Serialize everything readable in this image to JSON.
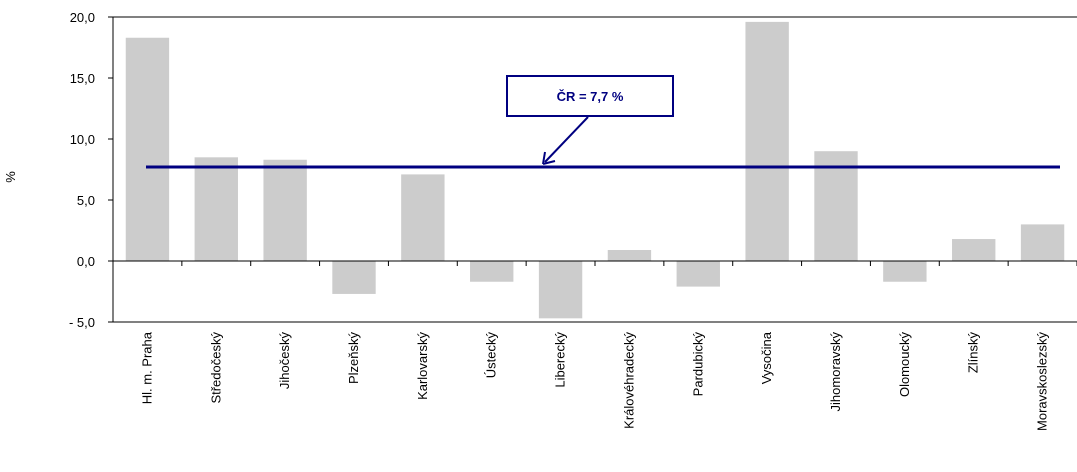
{
  "chart_data": {
    "type": "bar",
    "categories": [
      "Hl. m. Praha",
      "Středočeský",
      "Jihočeský",
      "Plzeňský",
      "Karlovarský",
      "Ústecký",
      "Liberecký",
      "Královéhradecký",
      "Pardubický",
      "Vysočina",
      "Jihomoravský",
      "Olomoucký",
      "Zlínský",
      "Moravskoslezský"
    ],
    "values": [
      18.3,
      8.5,
      8.3,
      -2.7,
      7.1,
      -1.7,
      -4.7,
      0.9,
      -2.1,
      19.6,
      9.0,
      -1.7,
      1.8,
      3.0
    ],
    "bar_color": "#cccccc",
    "reference_line": {
      "value": 7.7,
      "label": "ČR = 7,7 %",
      "color": "#000080"
    },
    "ylabel": "%",
    "ylim": [
      -5,
      20
    ],
    "yticks": [
      20,
      15,
      10,
      5,
      0,
      -5
    ],
    "ytick_labels": [
      "20,0",
      "15,0",
      "10,0",
      "5,0",
      "0,0",
      "- 5,0"
    ],
    "grid": false,
    "legend": "none"
  }
}
